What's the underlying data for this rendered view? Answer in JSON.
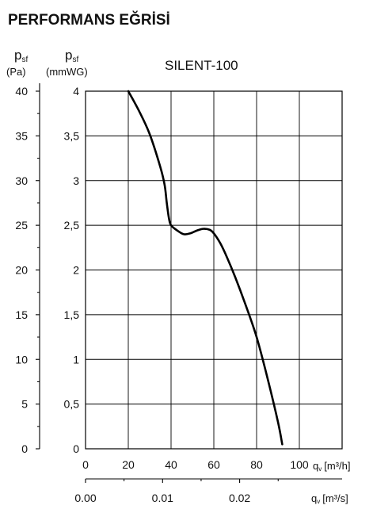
{
  "page_title": "PERFORMANS EĞRİSİ",
  "chart_data": {
    "type": "line",
    "title": "SILENT-100",
    "y_left": {
      "symbol": "p",
      "subscript": "sf",
      "unit": "(Pa)",
      "range": [
        0,
        40
      ],
      "ticks": [
        "0",
        "5",
        "10",
        "15",
        "20",
        "25",
        "30",
        "35",
        "40"
      ]
    },
    "y_right": {
      "symbol": "p",
      "subscript": "sf",
      "unit": "(mmWG)",
      "range": [
        0,
        4
      ],
      "ticks": [
        "0",
        "0,5",
        "1",
        "1,5",
        "2",
        "2,5",
        "3",
        "3,5",
        "4"
      ]
    },
    "x_primary": {
      "label_symbol": "q",
      "label_subscript": "v",
      "label_unit": "[m³/h]",
      "range": [
        0,
        120
      ],
      "ticks": [
        "0",
        "20",
        "40",
        "60",
        "80",
        "100"
      ]
    },
    "x_secondary": {
      "label_symbol": "q",
      "label_subscript": "v",
      "label_unit": "[m³/s]",
      "range": [
        0,
        0.0333
      ],
      "ticks": [
        "0.00",
        "0.01",
        "0.02"
      ]
    },
    "grid": true,
    "series": [
      {
        "color": "#000000",
        "x": [
          20,
          25,
          30,
          35,
          37,
          38,
          39,
          40,
          43,
          46,
          49,
          52,
          55,
          58,
          60,
          63,
          66,
          70,
          75,
          80,
          85,
          90,
          92
        ],
        "y": [
          4.0,
          3.78,
          3.52,
          3.15,
          2.95,
          2.75,
          2.58,
          2.5,
          2.44,
          2.4,
          2.41,
          2.44,
          2.46,
          2.45,
          2.41,
          2.3,
          2.15,
          1.92,
          1.6,
          1.25,
          0.8,
          0.3,
          0.05
        ]
      }
    ]
  }
}
